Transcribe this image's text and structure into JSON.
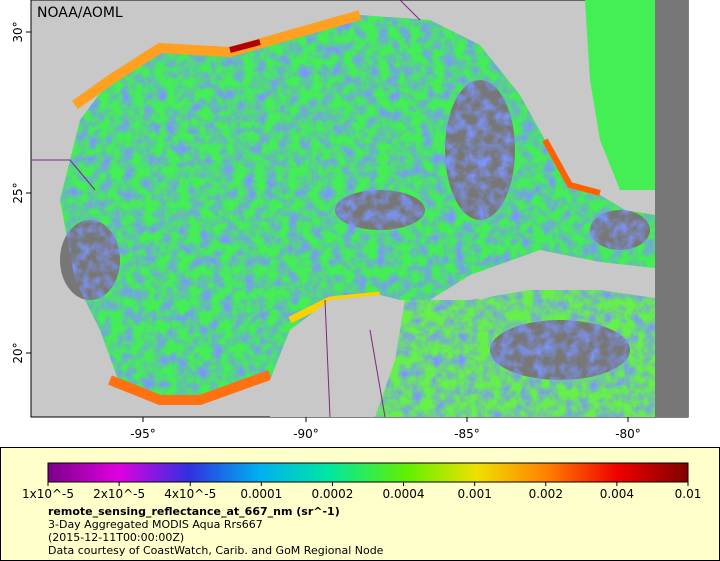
{
  "header": {
    "credit": "NOAA/AOML"
  },
  "map": {
    "lat_ticks": [
      "30°",
      "25°",
      "20°"
    ],
    "lon_ticks": [
      "-95°",
      "-90°",
      "-85°",
      "-80°"
    ]
  },
  "colorbar": {
    "labels": [
      "1x10^-5",
      "2x10^-5",
      "4x10^-5",
      "0.0001",
      "0.0002",
      "0.0004",
      "0.001",
      "0.002",
      "0.004",
      "0.01"
    ]
  },
  "caption": {
    "variable": "remote_sensing_reflectance_at_667_nm (sr^-1)",
    "product": "3-Day Aggregated MODIS Aqua Rrs667",
    "date": "(2015-12-11T00:00:00Z)",
    "source": "Data courtesy of CoastWatch, Carib. and GoM Regional Node"
  }
}
